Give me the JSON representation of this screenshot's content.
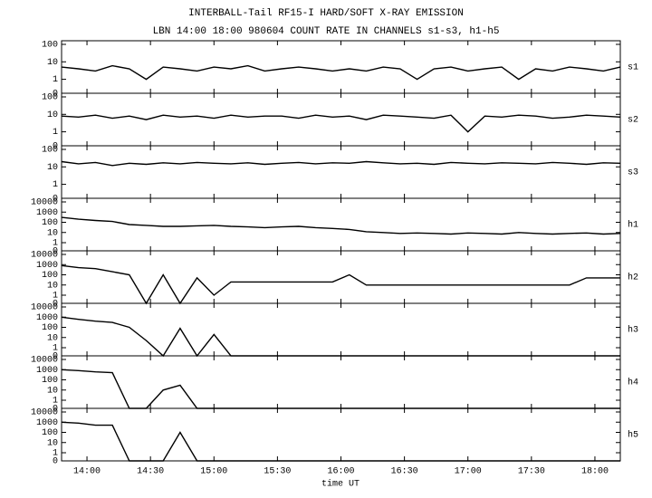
{
  "chart_data": [
    {
      "type": "line",
      "title": "INTERBALL-Tail RF15-I HARD/SOFT X-RAY EMISSION",
      "subtitle": "LBN 14:00 18:00 980604  COUNT RATE IN CHANNELS s1-s3, h1-h5",
      "yscale": "log-with-zero",
      "xlim": [
        828,
        1092
      ],
      "ylim": [
        0,
        100
      ],
      "yticks": [
        0,
        1,
        10,
        100
      ],
      "x": [
        828,
        836,
        844,
        852,
        860,
        868,
        876,
        884,
        892,
        900,
        908,
        916,
        924,
        932,
        940,
        948,
        956,
        964,
        972,
        980,
        988,
        996,
        1004,
        1012,
        1020,
        1028,
        1036,
        1044,
        1052,
        1060,
        1068,
        1076,
        1084,
        1092
      ],
      "series": [
        {
          "name": "s1",
          "color": "#000000",
          "values": [
            5,
            4,
            3,
            6,
            4,
            1,
            5,
            4,
            3,
            5,
            4,
            6,
            3,
            4,
            5,
            4,
            3,
            4,
            3,
            5,
            4,
            1,
            4,
            5,
            3,
            4,
            5,
            1,
            4,
            3,
            5,
            4,
            3,
            5
          ]
        }
      ]
    },
    {
      "type": "line",
      "yscale": "log-with-zero",
      "xlim": [
        828,
        1092
      ],
      "ylim": [
        0,
        100
      ],
      "yticks": [
        0,
        1,
        10,
        100
      ],
      "x": [
        828,
        836,
        844,
        852,
        860,
        868,
        876,
        884,
        892,
        900,
        908,
        916,
        924,
        932,
        940,
        948,
        956,
        964,
        972,
        980,
        988,
        996,
        1004,
        1012,
        1020,
        1028,
        1036,
        1044,
        1052,
        1060,
        1068,
        1076,
        1084,
        1092
      ],
      "series": [
        {
          "name": "s2",
          "color": "#000000",
          "values": [
            8,
            7,
            9,
            6,
            8,
            5,
            9,
            7,
            8,
            6,
            9,
            7,
            8,
            8,
            6,
            9,
            7,
            8,
            5,
            9,
            8,
            7,
            6,
            9,
            1,
            8,
            7,
            9,
            8,
            6,
            7,
            9,
            8,
            7
          ]
        }
      ]
    },
    {
      "type": "line",
      "yscale": "log-with-zero",
      "xlim": [
        828,
        1092
      ],
      "ylim": [
        0,
        100
      ],
      "yticks": [
        0,
        1,
        10,
        100
      ],
      "x": [
        828,
        836,
        844,
        852,
        860,
        868,
        876,
        884,
        892,
        900,
        908,
        916,
        924,
        932,
        940,
        948,
        956,
        964,
        972,
        980,
        988,
        996,
        1004,
        1012,
        1020,
        1028,
        1036,
        1044,
        1052,
        1060,
        1068,
        1076,
        1084,
        1092
      ],
      "series": [
        {
          "name": "s3",
          "color": "#000000",
          "values": [
            20,
            15,
            18,
            12,
            16,
            14,
            17,
            15,
            18,
            16,
            15,
            17,
            14,
            16,
            18,
            15,
            17,
            16,
            20,
            17,
            15,
            16,
            14,
            18,
            16,
            15,
            17,
            16,
            15,
            18,
            16,
            14,
            17,
            16
          ]
        }
      ]
    },
    {
      "type": "line",
      "yscale": "log-with-zero",
      "xlim": [
        828,
        1092
      ],
      "ylim": [
        0,
        10000
      ],
      "yticks": [
        0,
        1,
        10,
        100,
        1000,
        10000
      ],
      "x": [
        828,
        836,
        844,
        852,
        860,
        868,
        876,
        884,
        892,
        900,
        908,
        916,
        924,
        932,
        940,
        948,
        956,
        964,
        972,
        980,
        988,
        996,
        1004,
        1012,
        1020,
        1028,
        1036,
        1044,
        1052,
        1060,
        1068,
        1076,
        1084,
        1092
      ],
      "series": [
        {
          "name": "h1",
          "color": "#000000",
          "values": [
            300,
            200,
            150,
            120,
            60,
            50,
            40,
            40,
            45,
            50,
            40,
            35,
            30,
            35,
            40,
            30,
            25,
            20,
            12,
            10,
            8,
            9,
            8,
            7,
            9,
            8,
            7,
            10,
            8,
            7,
            8,
            9,
            7,
            8
          ]
        }
      ]
    },
    {
      "type": "line",
      "yscale": "log-with-zero",
      "xlim": [
        828,
        1092
      ],
      "ylim": [
        0,
        10000
      ],
      "yticks": [
        0,
        1,
        10,
        100,
        1000,
        10000
      ],
      "x": [
        828,
        836,
        844,
        852,
        860,
        868,
        876,
        884,
        892,
        900,
        908,
        916,
        924,
        932,
        940,
        948,
        956,
        964,
        972,
        980,
        988,
        996,
        1004,
        1012,
        1020,
        1028,
        1036,
        1044,
        1052,
        1060,
        1068,
        1076,
        1084,
        1092
      ],
      "series": [
        {
          "name": "h2",
          "color": "#000000",
          "values": [
            800,
            500,
            400,
            200,
            100,
            0,
            100,
            0,
            50,
            1,
            20,
            20,
            20,
            20,
            20,
            20,
            20,
            100,
            10,
            10,
            10,
            10,
            10,
            10,
            10,
            10,
            10,
            10,
            10,
            10,
            10,
            50,
            50,
            50
          ]
        }
      ]
    },
    {
      "type": "line",
      "yscale": "log-with-zero",
      "xlim": [
        828,
        1092
      ],
      "ylim": [
        0,
        10000
      ],
      "yticks": [
        0,
        1,
        10,
        100,
        1000,
        10000
      ],
      "x": [
        828,
        836,
        844,
        852,
        860,
        868,
        876,
        884,
        892,
        900,
        908,
        916,
        924,
        932,
        940,
        948,
        956,
        964,
        972,
        980,
        988,
        996,
        1004,
        1012,
        1020,
        1028,
        1036,
        1044,
        1052,
        1060,
        1068,
        1076,
        1084,
        1092
      ],
      "series": [
        {
          "name": "h3",
          "color": "#000000",
          "values": [
            1000,
            600,
            400,
            300,
            100,
            5,
            0,
            80,
            0,
            20,
            0,
            0,
            0,
            0,
            0,
            0,
            0,
            0,
            0,
            0,
            0,
            0,
            0,
            0,
            0,
            0,
            0,
            0,
            0,
            0,
            0,
            0,
            0,
            0
          ]
        }
      ]
    },
    {
      "type": "line",
      "yscale": "log-with-zero",
      "xlim": [
        828,
        1092
      ],
      "ylim": [
        0,
        10000
      ],
      "yticks": [
        0,
        1,
        10,
        100,
        1000,
        10000
      ],
      "x": [
        828,
        836,
        844,
        852,
        860,
        868,
        876,
        884,
        892,
        900,
        908,
        916,
        924,
        932,
        940,
        948,
        956,
        964,
        972,
        980,
        988,
        996,
        1004,
        1012,
        1020,
        1028,
        1036,
        1044,
        1052,
        1060,
        1068,
        1076,
        1084,
        1092
      ],
      "series": [
        {
          "name": "h4",
          "color": "#000000",
          "values": [
            1000,
            800,
            600,
            500,
            0,
            0,
            10,
            30,
            0,
            0,
            0,
            0,
            0,
            0,
            0,
            0,
            0,
            0,
            0,
            0,
            0,
            0,
            0,
            0,
            0,
            0,
            0,
            0,
            0,
            0,
            0,
            0,
            0,
            0
          ]
        }
      ]
    },
    {
      "type": "line",
      "yscale": "log-with-zero",
      "xlim": [
        828,
        1092
      ],
      "ylim": [
        0,
        10000
      ],
      "yticks": [
        0,
        1,
        10,
        100,
        1000,
        10000
      ],
      "x": [
        828,
        836,
        844,
        852,
        860,
        868,
        876,
        884,
        892,
        900,
        908,
        916,
        924,
        932,
        940,
        948,
        956,
        964,
        972,
        980,
        988,
        996,
        1004,
        1012,
        1020,
        1028,
        1036,
        1044,
        1052,
        1060,
        1068,
        1076,
        1084,
        1092
      ],
      "series": [
        {
          "name": "h5",
          "color": "#000000",
          "values": [
            1000,
            800,
            500,
            500,
            0,
            0,
            0,
            100,
            0,
            0,
            0,
            0,
            0,
            0,
            0,
            0,
            0,
            0,
            0,
            0,
            0,
            0,
            0,
            0,
            0,
            0,
            0,
            0,
            0,
            0,
            0,
            0,
            0,
            0
          ]
        }
      ],
      "xlabel": "time UT",
      "xticks": [
        {
          "value": 840,
          "label": "14:00"
        },
        {
          "value": 870,
          "label": "14:30"
        },
        {
          "value": 900,
          "label": "15:00"
        },
        {
          "value": 930,
          "label": "15:30"
        },
        {
          "value": 960,
          "label": "16:00"
        },
        {
          "value": 990,
          "label": "16:30"
        },
        {
          "value": 1020,
          "label": "17:00"
        },
        {
          "value": 1050,
          "label": "17:30"
        },
        {
          "value": 1080,
          "label": "18:00"
        }
      ]
    }
  ]
}
